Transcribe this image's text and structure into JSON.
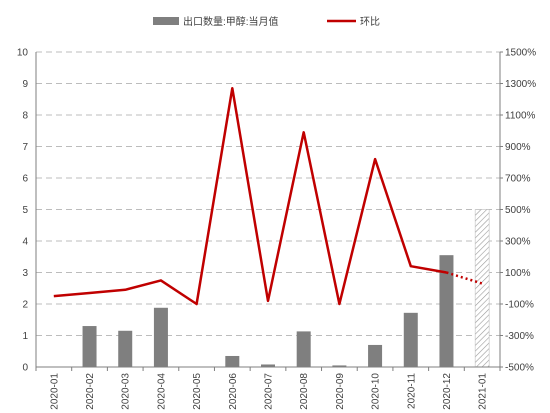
{
  "chart_data": {
    "type": "bar",
    "categories": [
      "2020-01",
      "2020-02",
      "2020-03",
      "2020-04",
      "2020-05",
      "2020-06",
      "2020-07",
      "2020-08",
      "2020-09",
      "2020-10",
      "2020-11",
      "2020-12",
      "2021-01"
    ],
    "series": [
      {
        "name": "出口数量:甲醇:当月值",
        "type": "bar",
        "axis": "left",
        "color": "#7f7f7f",
        "values": [
          0,
          1.3,
          1.15,
          1.88,
          0,
          0.35,
          0.08,
          1.13,
          0.05,
          0.7,
          1.72,
          3.55,
          5.0
        ],
        "hatched_last": true
      },
      {
        "name": "环比",
        "type": "line",
        "axis": "right",
        "color": "#c00000",
        "values": [
          -50,
          -30,
          -10,
          50,
          -100,
          1270,
          -80,
          990,
          -100,
          820,
          140,
          100,
          30
        ],
        "dotted_last": true
      }
    ],
    "yleft": {
      "lim": [
        0,
        10
      ],
      "ticks": [
        "0",
        "1",
        "2",
        "3",
        "4",
        "5",
        "6",
        "7",
        "8",
        "9",
        "10"
      ]
    },
    "yright": {
      "lim": [
        -500,
        1500
      ],
      "ticks": [
        "-500%",
        "-300%",
        "-100%",
        "100%",
        "300%",
        "500%",
        "700%",
        "900%",
        "1100%",
        "1300%",
        "1500%"
      ]
    },
    "grid": true,
    "legend_position": "top"
  }
}
